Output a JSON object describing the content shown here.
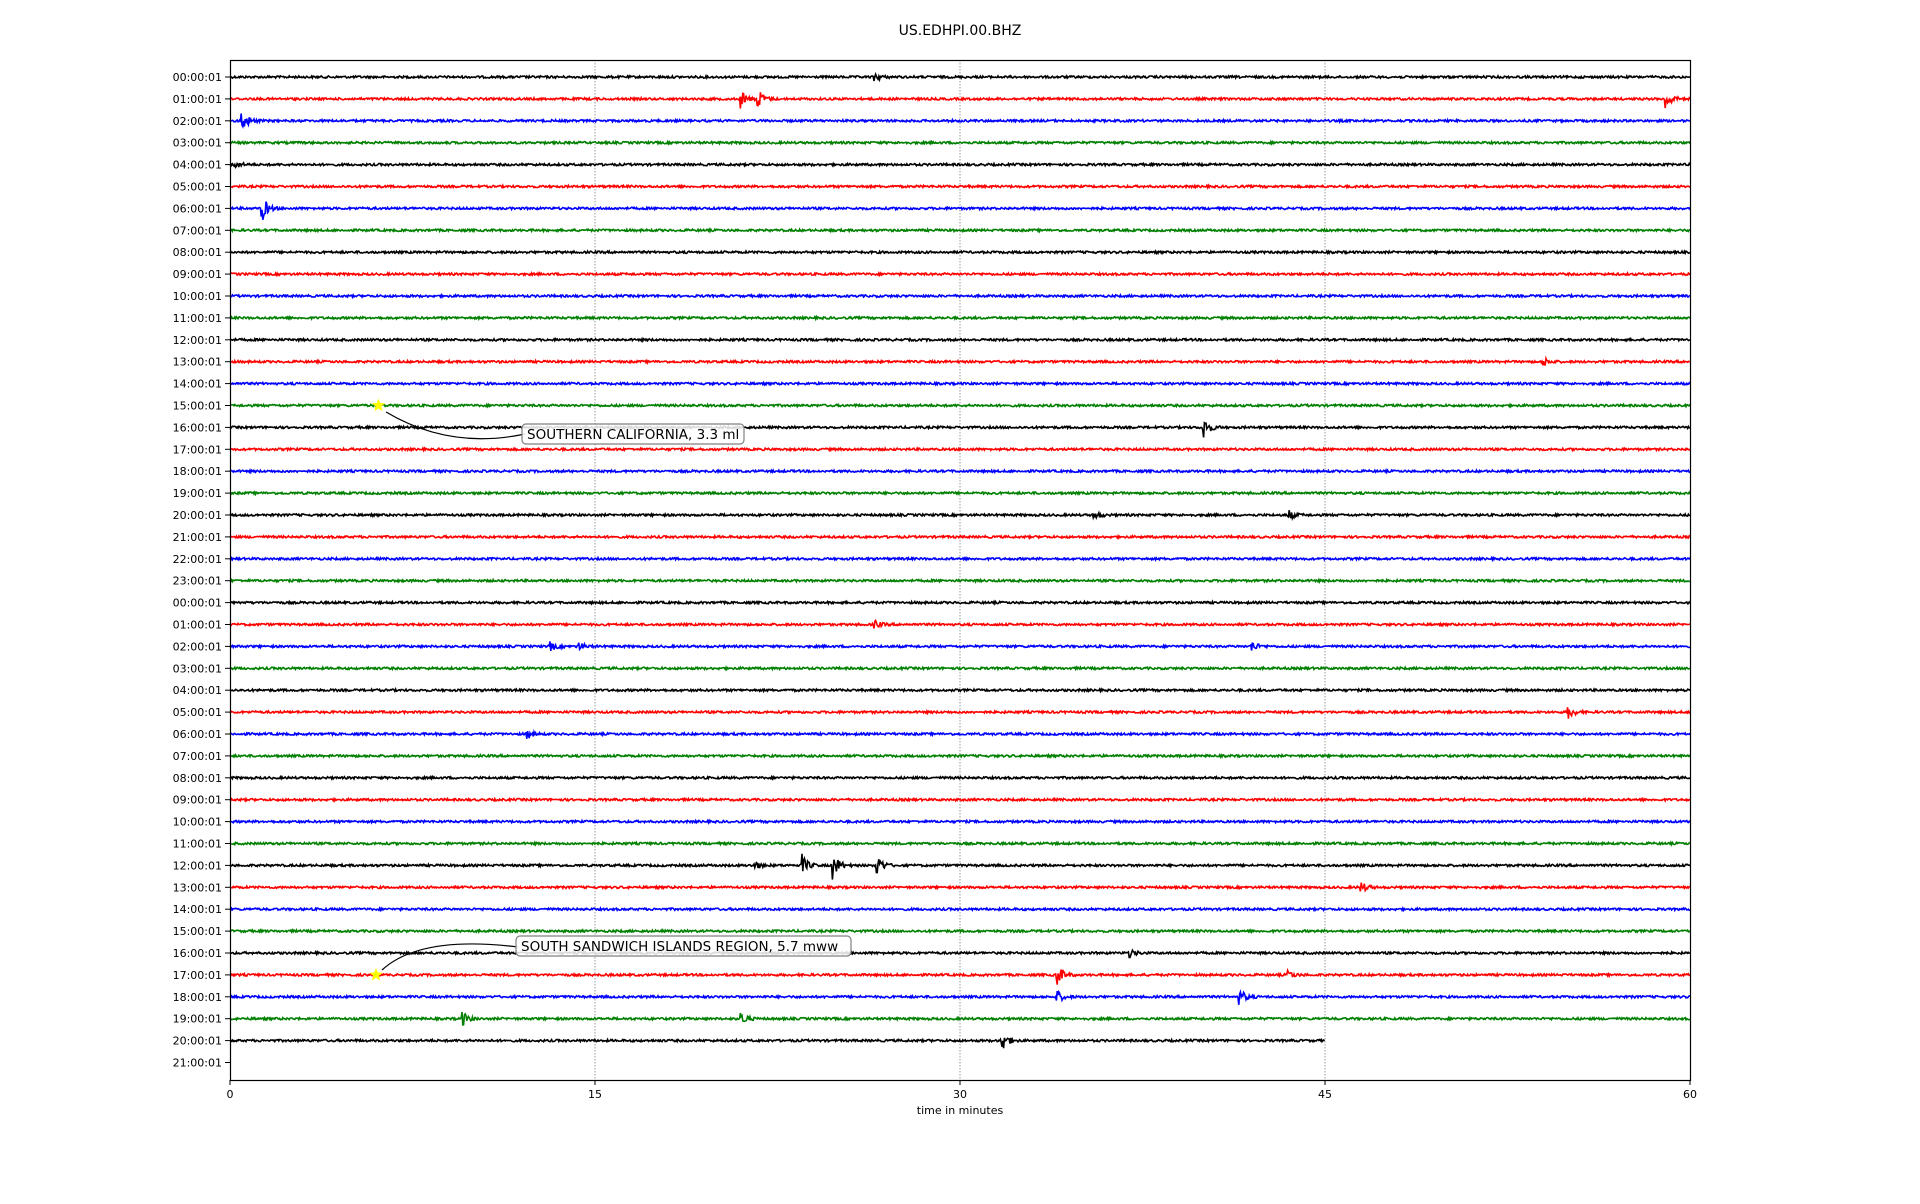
{
  "chart_data": {
    "type": "line",
    "title": "US.EDHPI.00.BHZ",
    "xlabel": "time in minutes",
    "ylabel": "",
    "xlim": [
      0,
      60
    ],
    "xticks": [
      "0",
      "15",
      "30",
      "45",
      "60"
    ],
    "grid": "vertical dotted lines at x ticks",
    "row_labels": [
      "00:00:01",
      "01:00:01",
      "02:00:01",
      "03:00:01",
      "04:00:01",
      "05:00:01",
      "06:00:01",
      "07:00:01",
      "08:00:01",
      "09:00:01",
      "10:00:01",
      "11:00:01",
      "12:00:01",
      "13:00:01",
      "14:00:01",
      "15:00:01",
      "16:00:01",
      "17:00:01",
      "18:00:01",
      "19:00:01",
      "20:00:01",
      "21:00:01",
      "22:00:01",
      "23:00:01",
      "00:00:01",
      "01:00:01",
      "02:00:01",
      "03:00:01",
      "04:00:01",
      "05:00:01",
      "06:00:01",
      "07:00:01",
      "08:00:01",
      "09:00:01",
      "10:00:01",
      "11:00:01",
      "12:00:01",
      "13:00:01",
      "14:00:01",
      "15:00:01",
      "16:00:01",
      "17:00:01",
      "18:00:01",
      "19:00:01",
      "20:00:01",
      "21:00:01"
    ],
    "trace_colors": [
      "#000000",
      "#ff0000",
      "#0000ff",
      "#008000"
    ],
    "trace_minutes_per_row": 60,
    "last_trace_row": 44,
    "last_trace_end_minute": 45,
    "signal_bursts": [
      {
        "row": 0,
        "minute": 26.5,
        "amp": 0.4
      },
      {
        "row": 1,
        "minute": 21.0,
        "amp": 0.9
      },
      {
        "row": 1,
        "minute": 21.7,
        "amp": 1.0
      },
      {
        "row": 1,
        "minute": 59.0,
        "amp": 1.1
      },
      {
        "row": 2,
        "minute": 0.5,
        "amp": 1.2
      },
      {
        "row": 4,
        "minute": 0.2,
        "amp": 0.4
      },
      {
        "row": 6,
        "minute": 1.3,
        "amp": 1.4
      },
      {
        "row": 13,
        "minute": 54.0,
        "amp": 0.4
      },
      {
        "row": 16,
        "minute": 40.0,
        "amp": 1.2
      },
      {
        "row": 20,
        "minute": 35.5,
        "amp": 0.5
      },
      {
        "row": 20,
        "minute": 43.5,
        "amp": 0.5
      },
      {
        "row": 25,
        "minute": 26.5,
        "amp": 0.4
      },
      {
        "row": 26,
        "minute": 13.2,
        "amp": 0.4
      },
      {
        "row": 26,
        "minute": 14.3,
        "amp": 0.5
      },
      {
        "row": 26,
        "minute": 42.0,
        "amp": 0.5
      },
      {
        "row": 29,
        "minute": 55.0,
        "amp": 0.7
      },
      {
        "row": 30,
        "minute": 12.2,
        "amp": 0.5
      },
      {
        "row": 36,
        "minute": 21.5,
        "amp": 0.6
      },
      {
        "row": 36,
        "minute": 23.5,
        "amp": 1.1
      },
      {
        "row": 36,
        "minute": 24.8,
        "amp": 1.3
      },
      {
        "row": 36,
        "minute": 26.6,
        "amp": 1.1
      },
      {
        "row": 37,
        "minute": 46.5,
        "amp": 0.5
      },
      {
        "row": 40,
        "minute": 37.0,
        "amp": 0.4
      },
      {
        "row": 41,
        "minute": 34.0,
        "amp": 1.2
      },
      {
        "row": 41,
        "minute": 43.5,
        "amp": 0.4
      },
      {
        "row": 42,
        "minute": 34.0,
        "amp": 0.6
      },
      {
        "row": 42,
        "minute": 41.5,
        "amp": 0.8
      },
      {
        "row": 43,
        "minute": 9.5,
        "amp": 0.9
      },
      {
        "row": 43,
        "minute": 21.0,
        "amp": 0.7
      },
      {
        "row": 44,
        "minute": 31.7,
        "amp": 1.2
      }
    ],
    "annotations": [
      {
        "text": "SOUTHERN CALIFORNIA, 3.3 ml",
        "row": 15,
        "minute": 6.1,
        "marker": "star",
        "marker_color": "#ffff00"
      },
      {
        "text": "SOUTH SANDWICH ISLANDS REGION, 5.7 mww",
        "row": 41,
        "minute": 6.0,
        "marker": "star",
        "marker_color": "#ffff00"
      }
    ]
  }
}
